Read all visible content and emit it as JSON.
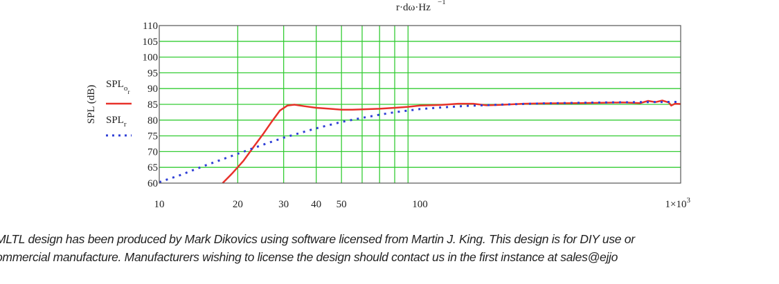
{
  "header_fragment": {
    "text": "r·dω·Hz",
    "superscript": "−1"
  },
  "legend": {
    "entries": [
      {
        "label": "SPL",
        "subscript": "o",
        "subsubscript": "r",
        "style": "solid",
        "color": "#e8312a"
      },
      {
        "label": "SPL",
        "subscript": "r",
        "style": "dotted",
        "color": "#2f3fd6"
      }
    ]
  },
  "colors": {
    "grid": "#33cc33",
    "frame": "#555555",
    "series_solid": "#e8312a",
    "series_dotted": "#2f3fd6",
    "ref_line": "#333333"
  },
  "chart_data": {
    "type": "line",
    "x_scale": "log",
    "xlim": [
      10,
      1000
    ],
    "ylim": [
      60,
      110
    ],
    "grid": true,
    "legend_position": "left",
    "ylabel": "SPL (dB)",
    "xlabel": "",
    "x_tick_labels": [
      {
        "value": 10,
        "label": "10"
      },
      {
        "value": 20,
        "label": "20"
      },
      {
        "value": 30,
        "label": "30"
      },
      {
        "value": 40,
        "label": "40"
      },
      {
        "value": 50,
        "label": "50"
      },
      {
        "value": 100,
        "label": "100"
      },
      {
        "value": 1000,
        "label": "1×10",
        "superscript": "3"
      }
    ],
    "y_ticks": [
      110,
      105,
      100,
      95,
      90,
      85,
      80,
      75,
      70,
      65,
      60
    ],
    "series": [
      {
        "name": "SPLor",
        "style": "solid",
        "points": [
          [
            17.5,
            60
          ],
          [
            19,
            63
          ],
          [
            21,
            67
          ],
          [
            23,
            71.5
          ],
          [
            25,
            75.5
          ],
          [
            27,
            79.5
          ],
          [
            29,
            83
          ],
          [
            31,
            84.6
          ],
          [
            33,
            84.9
          ],
          [
            36,
            84.4
          ],
          [
            40,
            83.9
          ],
          [
            45,
            83.6
          ],
          [
            50,
            83.3
          ],
          [
            55,
            83.3
          ],
          [
            60,
            83.4
          ],
          [
            70,
            83.6
          ],
          [
            80,
            83.9
          ],
          [
            90,
            84.2
          ],
          [
            100,
            84.6
          ],
          [
            120,
            84.8
          ],
          [
            140,
            85.2
          ],
          [
            160,
            85.2
          ],
          [
            180,
            84.7
          ],
          [
            200,
            84.8
          ],
          [
            250,
            85.2
          ],
          [
            300,
            85.3
          ],
          [
            400,
            85.4
          ],
          [
            500,
            85.5
          ],
          [
            600,
            85.6
          ],
          [
            700,
            85.4
          ],
          [
            750,
            86.1
          ],
          [
            800,
            85.7
          ],
          [
            850,
            86.2
          ],
          [
            900,
            85.6
          ],
          [
            920,
            84.6
          ],
          [
            950,
            85.2
          ],
          [
            1000,
            85.1
          ]
        ]
      },
      {
        "name": "SPLr",
        "style": "dotted",
        "points": [
          [
            10,
            60.3
          ],
          [
            12,
            62.5
          ],
          [
            15,
            65.6
          ],
          [
            20,
            69.3
          ],
          [
            25,
            72.2
          ],
          [
            30,
            74.4
          ],
          [
            40,
            77.4
          ],
          [
            50,
            79.4
          ],
          [
            60,
            80.7
          ],
          [
            70,
            81.7
          ],
          [
            80,
            82.5
          ],
          [
            100,
            83.5
          ],
          [
            120,
            84.0
          ],
          [
            150,
            84.5
          ],
          [
            200,
            84.9
          ],
          [
            300,
            85.3
          ],
          [
            500,
            85.6
          ],
          [
            700,
            85.7
          ],
          [
            1000,
            85.8
          ]
        ]
      }
    ]
  },
  "caption": {
    "line1": "MLTL design has been produced by Mark Dikovics using software licensed from Martin J. King. This design is for DIY use or",
    "line2": "ommercial manufacture. Manufacturers wishing to license the design should contact us in the first instance at sales@ejjo"
  }
}
